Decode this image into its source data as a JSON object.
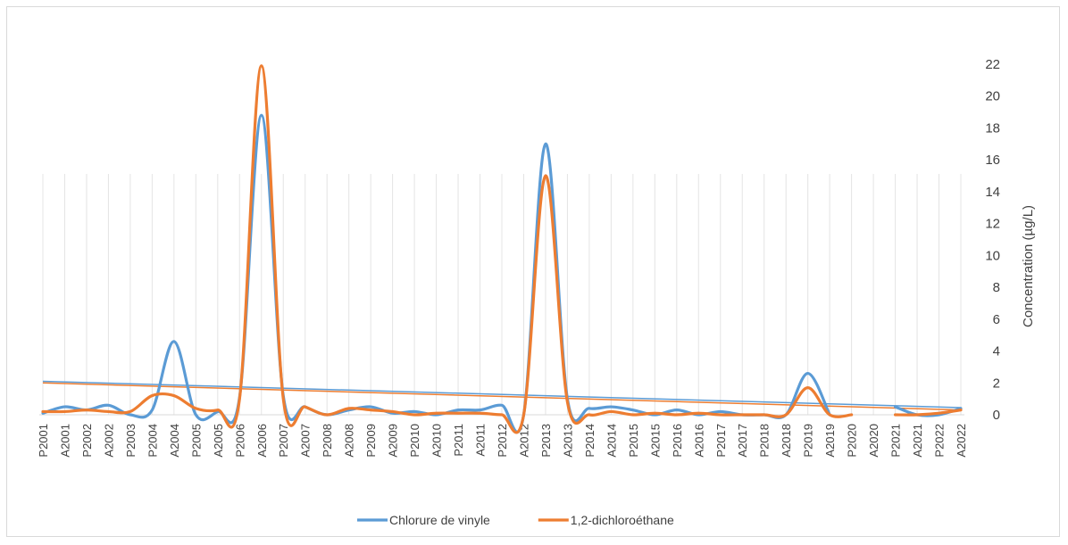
{
  "chart_data": {
    "type": "line",
    "title": "",
    "xlabel": "",
    "ylabel": "Concentration (µg/L)",
    "ylim": [
      0,
      22
    ],
    "yticks": [
      0,
      2,
      4,
      6,
      8,
      10,
      12,
      14,
      16,
      18,
      20,
      22
    ],
    "grid": "vertical dropped lines at each category",
    "legend_position": "bottom",
    "y_axis_side": "right",
    "smoothed": true,
    "categories": [
      "P2001",
      "A2001",
      "P2002",
      "A2002",
      "P2003",
      "P2004",
      "A2004",
      "P2005",
      "A2005",
      "P2006",
      "A2006",
      "P2007",
      "A2007",
      "P2008",
      "A2008",
      "P2009",
      "A2009",
      "P2010",
      "A2010",
      "P2011",
      "A2011",
      "P2012",
      "A2012",
      "P2013",
      "A2013",
      "P2014",
      "A2014",
      "P2015",
      "A2015",
      "P2016",
      "A2016",
      "P2017",
      "A2017",
      "P2018",
      "A2018",
      "P2019",
      "A2019",
      "P2020",
      "A2020",
      "P2021",
      "A2021",
      "P2022",
      "A2022"
    ],
    "series": [
      {
        "name": "Chlorure de vinyle",
        "color": "#5b9bd5",
        "values": [
          0.1,
          0.5,
          0.3,
          0.6,
          0,
          0.3,
          4.6,
          0,
          0.2,
          1.1,
          18.8,
          1.2,
          0.5,
          0,
          0.3,
          0.5,
          0.1,
          0.2,
          0,
          0.3,
          0.3,
          0.6,
          0,
          17.0,
          1.0,
          0.4,
          0.5,
          0.3,
          0,
          0.3,
          0,
          0.2,
          0,
          0,
          0,
          2.6,
          0,
          null,
          null,
          0.5,
          0,
          0,
          0.4
        ]
      },
      {
        "name": "1,2-dichloroéthane",
        "color": "#ed7d31",
        "values": [
          0.2,
          0.2,
          0.3,
          0.2,
          0.2,
          1.2,
          1.2,
          0.4,
          0.3,
          1.0,
          21.9,
          1.0,
          0.5,
          0,
          0.4,
          0.3,
          0.2,
          0,
          0.1,
          0.1,
          0.1,
          0,
          0,
          15.0,
          0.8,
          0,
          0.2,
          0,
          0.1,
          0,
          0.1,
          0,
          0,
          0,
          0,
          1.7,
          0,
          0,
          null,
          0,
          0,
          0.1,
          0.3
        ]
      }
    ],
    "trendlines": [
      {
        "series": "Chlorure de vinyle",
        "color": "#5b9bd5",
        "start": 2.1,
        "end": 0.45
      },
      {
        "series": "1,2-dichloroéthane",
        "color": "#ed7d31",
        "start": 2.0,
        "end": 0.3
      }
    ]
  }
}
